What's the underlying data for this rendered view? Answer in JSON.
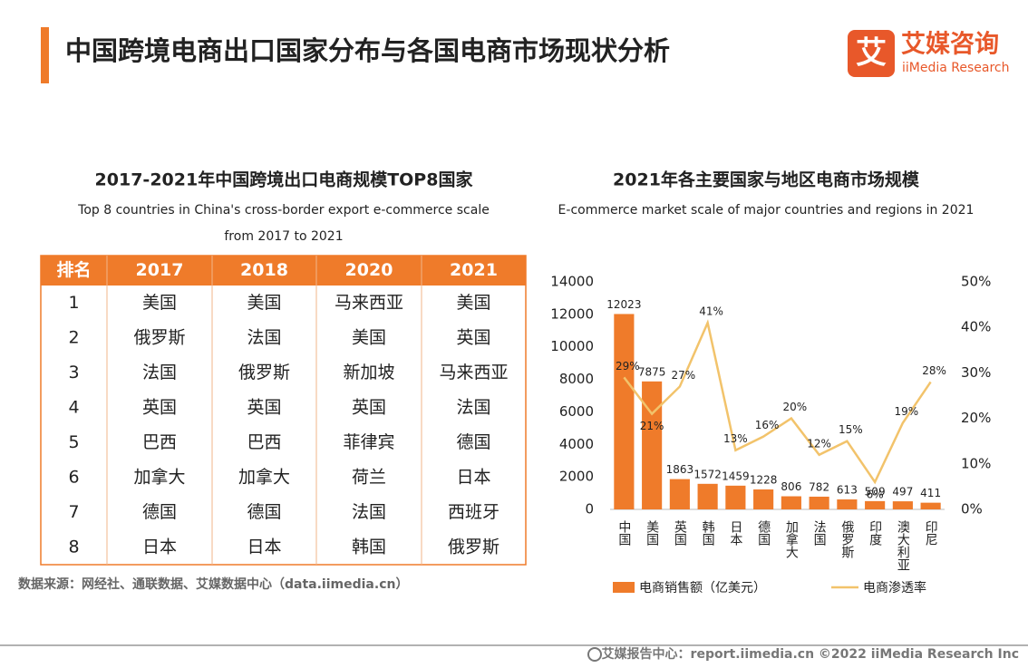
{
  "header": {
    "title": "中国跨境电商出口国家分布与各国电商市场现状分析"
  },
  "logo": {
    "mark": "艾",
    "name": "艾媒咨询",
    "english": "iiMedia Research"
  },
  "table": {
    "title": "2017-2021年中国跨境出口电商规模TOP8国家",
    "subtitle": [
      "Top 8 countries in China's cross-border export e-commerce scale",
      "from 2017 to 2021"
    ],
    "columns": [
      "排名",
      "2017",
      "2018",
      "2020",
      "2021"
    ],
    "rows": [
      [
        1,
        "美国",
        "美国",
        "马来西亚",
        "美国"
      ],
      [
        2,
        "俄罗斯",
        "法国",
        "美国",
        "英国"
      ],
      [
        3,
        "法国",
        "俄罗斯",
        "新加坡",
        "马来西亚"
      ],
      [
        4,
        "英国",
        "英国",
        "英国",
        "法国"
      ],
      [
        5,
        "巴西",
        "巴西",
        "菲律宾",
        "德国"
      ],
      [
        6,
        "加拿大",
        "加拿大",
        "荷兰",
        "日本"
      ],
      [
        7,
        "德国",
        "德国",
        "法国",
        "西班牙"
      ],
      [
        8,
        "日本",
        "日本",
        "韩国",
        "俄罗斯"
      ]
    ]
  },
  "source": "数据来源：网经社、通联数据、艾媒数据中心（data.iimedia.cn）",
  "chart_data": {
    "type": "combo",
    "title": "2021年各主要国家与地区电商市场规模",
    "subtitle": "E-commerce market scale of major countries and regions in 2021",
    "categories": [
      "中国",
      "美国",
      "英国",
      "韩国",
      "日本",
      "德国",
      "加拿大",
      "法国",
      "俄罗斯",
      "印度",
      "澳大利亚",
      "印尼"
    ],
    "series": [
      {
        "name": "电商销售额（亿美元）",
        "type": "bar",
        "color": "#ef7b2a",
        "values": [
          12023,
          7875,
          1863,
          1572,
          1459,
          1228,
          806,
          782,
          613,
          509,
          497,
          411
        ]
      },
      {
        "name": "电商渗透率",
        "type": "line",
        "color": "#f2c36b",
        "axis": "y2",
        "values": [
          29,
          21,
          27,
          41,
          13,
          16,
          20,
          12,
          15,
          6,
          19,
          28
        ],
        "value_labels": [
          "29%",
          "21%",
          "27%",
          "41%",
          "13%",
          "16%",
          "20%",
          "12%",
          "15%",
          "6%",
          "19%",
          "28%"
        ]
      }
    ],
    "ylim": [
      0,
      14000
    ],
    "yticks": [
      0,
      2000,
      4000,
      6000,
      8000,
      10000,
      12000,
      14000
    ],
    "y2lim": [
      0,
      50
    ],
    "y2ticks": [
      {
        "value": 0,
        "label": "0%"
      },
      {
        "value": 10,
        "label": "10%"
      },
      {
        "value": 20,
        "label": "20%"
      },
      {
        "value": 30,
        "label": "30%"
      },
      {
        "value": 40,
        "label": "40%"
      },
      {
        "value": 50,
        "label": "50%"
      }
    ],
    "legend": "bottom"
  },
  "footer": "艾媒报告中心：report.iimedia.cn  ©2022  iiMedia Research  Inc"
}
